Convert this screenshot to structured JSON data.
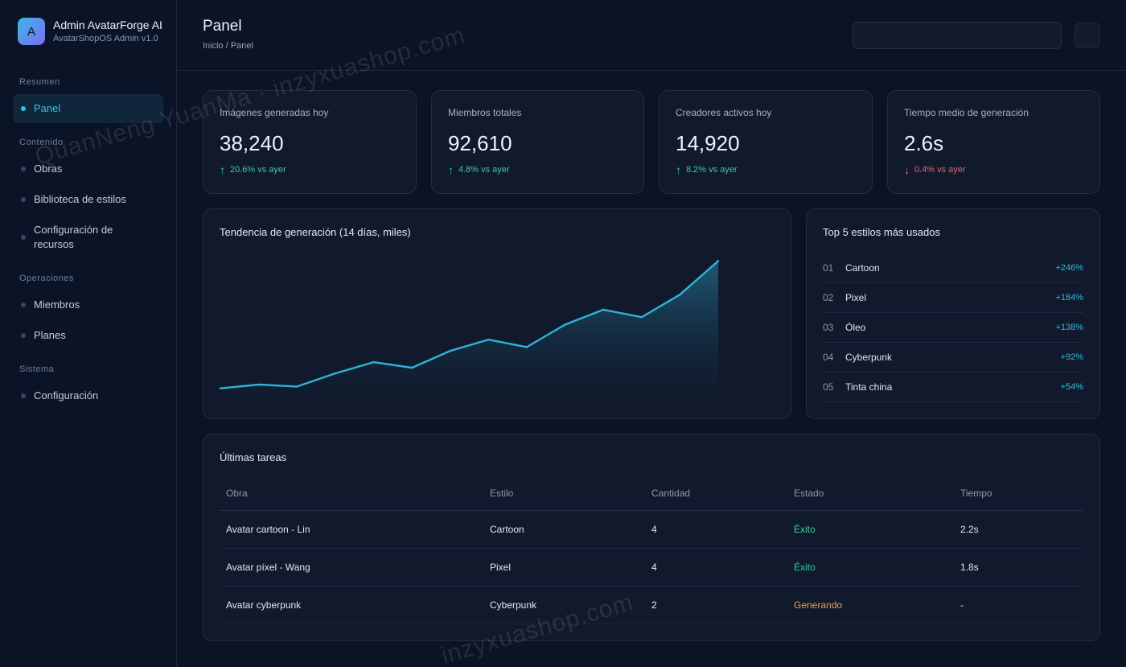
{
  "brand": {
    "logo_letter": "A",
    "title": "Admin AvatarForge AI",
    "subtitle": "AvatarShopOS Admin v1.0"
  },
  "sidebar": {
    "sections": [
      {
        "label": "Resumen",
        "items": [
          {
            "label": "Panel",
            "active": true
          }
        ]
      },
      {
        "label": "Contenido",
        "items": [
          {
            "label": "Obras"
          },
          {
            "label": "Biblioteca de estilos"
          },
          {
            "label": "Configuración de recursos"
          }
        ]
      },
      {
        "label": "Operaciones",
        "items": [
          {
            "label": "Miembros"
          },
          {
            "label": "Planes"
          }
        ]
      },
      {
        "label": "Sistema",
        "items": [
          {
            "label": "Configuración"
          }
        ]
      }
    ]
  },
  "header": {
    "title": "Panel",
    "breadcrumb": "Inicio / Panel",
    "search_value": ""
  },
  "stats": [
    {
      "label": "Imágenes generadas hoy",
      "value": "38,240",
      "change": "20.6% vs ayer",
      "direction": "up"
    },
    {
      "label": "Miembros totales",
      "value": "92,610",
      "change": "4.8% vs ayer",
      "direction": "up"
    },
    {
      "label": "Creadores activos hoy",
      "value": "14,920",
      "change": "8.2% vs ayer",
      "direction": "up"
    },
    {
      "label": "Tiempo medio de generación",
      "value": "2.6s",
      "change": "0.4% vs ayer",
      "direction": "down"
    }
  ],
  "trend_card": {
    "title": "Tendencia de generación (14 días, miles)"
  },
  "chart_data": {
    "type": "area",
    "title": "Tendencia de generación (14 días, miles)",
    "x": [
      1,
      2,
      3,
      4,
      5,
      6,
      7,
      8,
      9,
      10,
      11,
      12,
      13,
      14
    ],
    "values": [
      2,
      3,
      2.5,
      6,
      9,
      7.5,
      12,
      15,
      13,
      19,
      23,
      21,
      27,
      36
    ],
    "ylim": [
      0,
      38
    ],
    "grid": false,
    "line_color": "#2fb3d6"
  },
  "top_styles": {
    "title": "Top 5 estilos más usados",
    "items": [
      {
        "rank": "01",
        "name": "Cartoon",
        "pct": "+246%"
      },
      {
        "rank": "02",
        "name": "Pixel",
        "pct": "+184%"
      },
      {
        "rank": "03",
        "name": "Óleo",
        "pct": "+138%"
      },
      {
        "rank": "04",
        "name": "Cyberpunk",
        "pct": "+92%"
      },
      {
        "rank": "05",
        "name": "Tinta china",
        "pct": "+54%"
      }
    ]
  },
  "tasks": {
    "title": "Últimas tareas",
    "columns": [
      "Obra",
      "Estilo",
      "Cantidad",
      "Estado",
      "Tiempo"
    ],
    "rows": [
      {
        "obra": "Avatar cartoon - Lin",
        "estilo": "Cartoon",
        "cantidad": "4",
        "estado": "Éxito",
        "status": "ok",
        "tiempo": "2.2s"
      },
      {
        "obra": "Avatar píxel - Wang",
        "estilo": "Pixel",
        "cantidad": "4",
        "estado": "Éxito",
        "status": "ok",
        "tiempo": "1.8s"
      },
      {
        "obra": "Avatar cyberpunk",
        "estilo": "Cyberpunk",
        "cantidad": "2",
        "estado": "Generando",
        "status": "run",
        "tiempo": "-"
      }
    ]
  },
  "watermark": {
    "line1": "QuanNeng YuanMa · inzyxuashop.com",
    "line2": "inzyxuashop.com"
  },
  "colors": {
    "accent": "#33c1e3",
    "up": "#3ec99a",
    "down": "#ef5f6f",
    "running": "#e7a14b"
  }
}
